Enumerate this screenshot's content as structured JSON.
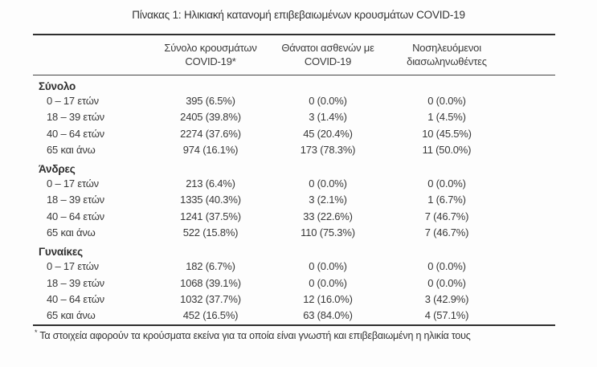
{
  "page": {
    "title": "Πίνακας 1: Ηλικιακή κατανομή επιβεβαιωμένων κρουσμάτων COVID-19"
  },
  "table": {
    "header": {
      "cases": "Σύνολο κρουσμάτων COVID-19*",
      "deaths": "Θάνατοι ασθενών με COVID-19",
      "intubated": "Νοσηλευόμενοι διασωληνωθέντες"
    },
    "sections": [
      {
        "label": "Σύνολο",
        "rows": [
          {
            "age": "0 – 17 ετών",
            "cases": "395 (6.5%)",
            "deaths": "0 (0.0%)",
            "intubated": "0 (0.0%)"
          },
          {
            "age": "18 – 39 ετών",
            "cases": "2405 (39.8%)",
            "deaths": "3 (1.4%)",
            "intubated": "1 (4.5%)"
          },
          {
            "age": "40 – 64 ετών",
            "cases": "2274 (37.6%)",
            "deaths": "45 (20.4%)",
            "intubated": "10 (45.5%)"
          },
          {
            "age": "65 και άνω",
            "cases": "974 (16.1%)",
            "deaths": "173 (78.3%)",
            "intubated": "11 (50.0%)"
          }
        ]
      },
      {
        "label": "Άνδρες",
        "rows": [
          {
            "age": "0 – 17 ετών",
            "cases": "213 (6.4%)",
            "deaths": "0 (0.0%)",
            "intubated": "0 (0.0%)"
          },
          {
            "age": "18 – 39 ετών",
            "cases": "1335 (40.3%)",
            "deaths": "3 (2.1%)",
            "intubated": "1 (6.7%)"
          },
          {
            "age": "40 – 64 ετών",
            "cases": "1241 (37.5%)",
            "deaths": "33 (22.6%)",
            "intubated": "7 (46.7%)"
          },
          {
            "age": "65 και άνω",
            "cases": "522 (15.8%)",
            "deaths": "110 (75.3%)",
            "intubated": "7 (46.7%)"
          }
        ]
      },
      {
        "label": "Γυναίκες",
        "rows": [
          {
            "age": "0 – 17 ετών",
            "cases": "182 (6.7%)",
            "deaths": "0 (0.0%)",
            "intubated": "0 (0.0%)"
          },
          {
            "age": "18 – 39 ετών",
            "cases": "1068 (39.1%)",
            "deaths": "0 (0.0%)",
            "intubated": "0 (0.0%)"
          },
          {
            "age": "40 – 64 ετών",
            "cases": "1032 (37.7%)",
            "deaths": "12 (16.0%)",
            "intubated": "3 (42.9%)"
          },
          {
            "age": "65 και άνω",
            "cases": "452 (16.5%)",
            "deaths": "63 (84.0%)",
            "intubated": "4 (57.1%)"
          }
        ]
      }
    ]
  },
  "footnote": {
    "marker": "*",
    "text": "Τα στοιχεία αφορούν τα κρούσματα εκείνα για τα οποία είναι γνωστή και επιβεβαιωμένη η ηλικία τους"
  },
  "colors": {
    "text": "#383838",
    "rule": "#2f2f2f",
    "background": "#fdfdfd"
  }
}
